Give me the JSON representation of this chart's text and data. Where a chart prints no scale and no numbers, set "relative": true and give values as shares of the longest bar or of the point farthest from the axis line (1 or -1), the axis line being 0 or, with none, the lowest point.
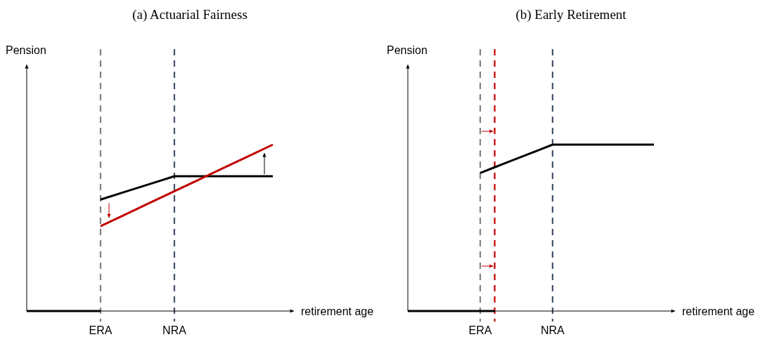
{
  "chart_data": [
    {
      "type": "line",
      "title": "(a) Actuarial Fairness",
      "xlabel": "retirement age",
      "ylabel": "Pension",
      "relative": true,
      "categories": [
        null,
        null,
        null,
        "ERA",
        null,
        null,
        "NRA",
        null,
        null,
        null,
        null
      ],
      "series": [
        {
          "values": [
            0,
            0,
            0,
            0,
            null,
            null,
            null,
            null,
            null,
            null,
            null
          ],
          "color": "#000000"
        },
        {
          "values": [
            null,
            null,
            null,
            0.67,
            0.717,
            0.763,
            0.81,
            0.81,
            0.81,
            0.81,
            0.81
          ],
          "color": "#000000"
        },
        {
          "values": [
            null,
            null,
            null,
            0.51,
            0.58,
            0.65,
            0.72,
            0.79,
            0.86,
            0.93,
            1
          ],
          "color": "#c00000"
        }
      ],
      "ref_lines": [
        {
          "axis": "x",
          "value": "ERA",
          "color": "#808080",
          "line_style": "dashed"
        },
        {
          "axis": "x",
          "value": "NRA",
          "color": "#44546a",
          "line_style": "dashed"
        }
      ]
    },
    {
      "type": "line",
      "title": "(b) Early Retirement",
      "xlabel": "retirement age",
      "ylabel": "Pension",
      "relative": true,
      "categories": [
        null,
        null,
        null,
        null,
        null,
        "ERA",
        null,
        null,
        null,
        null,
        "NRA",
        null,
        null,
        null,
        null,
        null,
        null,
        null
      ],
      "series": [
        {
          "values": [
            0,
            0,
            0,
            0,
            0,
            0,
            0,
            null,
            null,
            null,
            null,
            null,
            null,
            null,
            null,
            null,
            null,
            null
          ],
          "color": "#000000"
        },
        {
          "values": [
            null,
            null,
            null,
            null,
            null,
            0.83,
            0.864,
            0.898,
            0.932,
            0.966,
            1,
            1,
            1,
            1,
            1,
            1,
            1,
            1
          ],
          "color": "#000000"
        }
      ],
      "ref_lines": [
        {
          "axis": "x",
          "value": "ERA",
          "color": "#808080",
          "line_style": "dashed"
        },
        {
          "axis": "x",
          "value": "NRA",
          "color": "#44546a",
          "line_style": "dashed"
        }
      ]
    }
  ]
}
